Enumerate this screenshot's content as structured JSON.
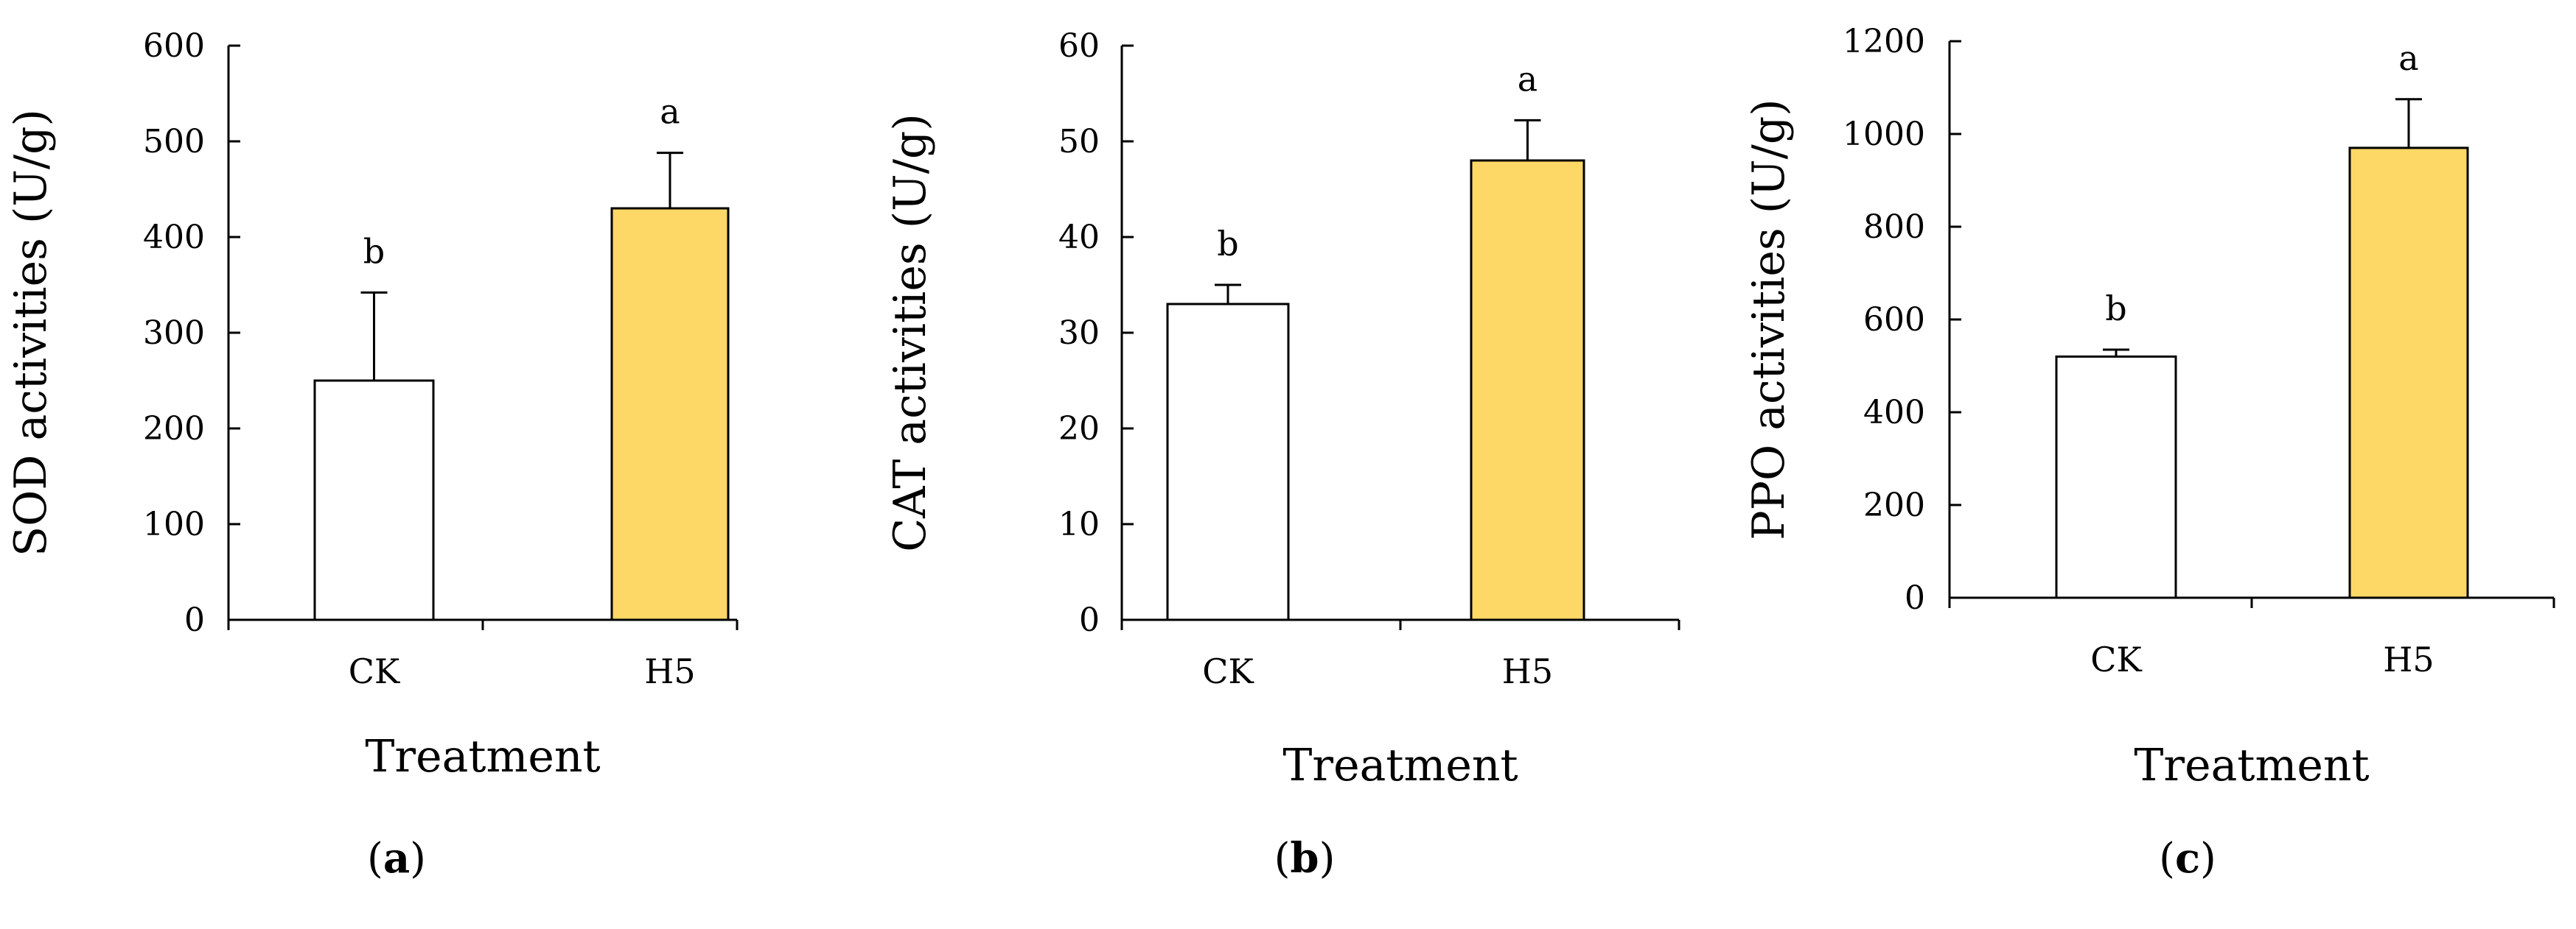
{
  "figure": {
    "colors": {
      "control": "#ffffff",
      "treatment": "#fdd866",
      "stroke": "#000000"
    }
  },
  "chart_data": [
    {
      "type": "bar",
      "panel_label": "a",
      "categories": [
        "CK",
        "H5"
      ],
      "values": [
        250,
        430
      ],
      "errors": [
        92,
        58
      ],
      "significance": [
        "b",
        "a"
      ],
      "xlabel": "Treatment",
      "ylabel": "SOD activities (U/g)",
      "ylim": [
        0,
        600
      ],
      "yticks": [
        0,
        100,
        200,
        300,
        400,
        500,
        600
      ],
      "grid": false,
      "legend": "none"
    },
    {
      "type": "bar",
      "panel_label": "b",
      "categories": [
        "CK",
        "H5"
      ],
      "values": [
        33,
        48
      ],
      "errors": [
        2,
        4.2
      ],
      "significance": [
        "b",
        "a"
      ],
      "xlabel": "Treatment",
      "ylabel": "CAT activities (U/g)",
      "ylim": [
        0,
        60
      ],
      "yticks": [
        0,
        10,
        20,
        30,
        40,
        50,
        60
      ],
      "grid": false,
      "legend": "none"
    },
    {
      "type": "bar",
      "panel_label": "c",
      "categories": [
        "CK",
        "H5"
      ],
      "values": [
        520,
        970
      ],
      "errors": [
        15,
        105
      ],
      "significance": [
        "b",
        "a"
      ],
      "xlabel": "Treatment",
      "ylabel": "PPO activities (U/g)",
      "ylim": [
        0,
        1200
      ],
      "yticks": [
        0,
        200,
        400,
        600,
        800,
        1000,
        1200
      ],
      "grid": false,
      "legend": "none"
    }
  ]
}
